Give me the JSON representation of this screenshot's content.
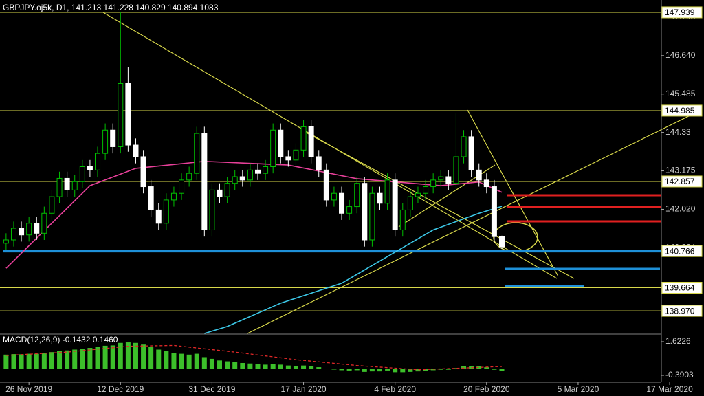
{
  "chart_data": [
    {
      "type": "candlestick",
      "title": "GBPJPY.oj5k, D1, 141.213 141.228 140.829 140.894 1083",
      "xlim": [
        -0.8,
        91.5
      ],
      "xticks": [
        {
          "value": 3,
          "label": "26 Nov 2019"
        },
        {
          "value": 15,
          "label": "12 Dec 2019"
        },
        {
          "value": 27,
          "label": "31 Dec 2019"
        },
        {
          "value": 39,
          "label": "17 Jan 2020"
        },
        {
          "value": 51,
          "label": "4 Feb 2020"
        },
        {
          "value": 63,
          "label": "20 Feb 2020"
        },
        {
          "value": 75,
          "label": "5 Mar 2020"
        },
        {
          "value": 87,
          "label": "17 Mar 2020"
        }
      ],
      "ylim": [
        138.29,
        148.31
      ],
      "yticks": [
        147.795,
        {
          "value": 146.64,
          "label": "146.640"
        },
        145.485,
        144.33,
        143.175,
        {
          "value": 142.02,
          "label": "142.020"
        },
        140.864
      ],
      "up_color": "#00c000",
      "down_color": "#ffffff",
      "open": [
        141.0,
        141.1,
        141.45,
        141.25,
        141.6,
        141.3,
        141.9,
        142.4,
        142.95,
        142.6,
        142.85,
        143.3,
        143.2,
        143.7,
        144.4,
        143.9,
        145.8,
        143.95,
        143.6,
        142.7,
        142.0,
        141.6,
        142.3,
        142.5,
        142.9,
        143.1,
        144.3,
        141.4,
        142.6,
        142.4,
        142.8,
        143.0,
        142.9,
        143.2,
        143.1,
        143.3,
        144.4,
        143.6,
        143.5,
        143.8,
        144.5,
        143.6,
        143.2,
        142.3,
        142.5,
        141.9,
        142.1,
        142.8,
        141.1,
        142.5,
        142.2,
        142.9,
        141.4,
        142.0,
        142.4,
        142.5,
        142.7,
        142.9,
        143.0,
        142.8,
        143.6,
        144.2,
        143.2,
        142.9,
        142.7,
        141.213
      ],
      "high": [
        141.3,
        141.65,
        141.65,
        141.8,
        141.8,
        142.1,
        142.6,
        143.15,
        143.15,
        143.05,
        143.5,
        143.5,
        143.9,
        144.6,
        144.6,
        147.94,
        146.3,
        144.15,
        143.8,
        142.9,
        142.2,
        142.5,
        142.7,
        143.1,
        143.3,
        144.5,
        144.5,
        142.8,
        142.8,
        143.0,
        143.2,
        143.2,
        143.4,
        143.4,
        143.5,
        144.6,
        144.6,
        143.8,
        144.0,
        144.7,
        144.7,
        143.8,
        143.4,
        142.7,
        142.7,
        142.3,
        143.0,
        143.0,
        142.7,
        142.7,
        143.1,
        143.1,
        142.2,
        142.6,
        142.7,
        142.9,
        143.1,
        143.2,
        143.2,
        144.9,
        144.4,
        144.4,
        143.4,
        143.1,
        142.9,
        141.228
      ],
      "low": [
        140.8,
        140.9,
        141.05,
        141.05,
        141.1,
        141.1,
        141.7,
        142.2,
        142.4,
        142.4,
        142.65,
        143.0,
        143.0,
        143.5,
        143.7,
        143.7,
        143.75,
        143.4,
        142.5,
        141.8,
        141.4,
        141.4,
        142.1,
        142.3,
        142.7,
        142.9,
        141.2,
        141.2,
        142.2,
        142.2,
        142.6,
        142.7,
        142.7,
        142.9,
        142.9,
        143.1,
        143.4,
        143.3,
        143.3,
        143.6,
        143.4,
        143.0,
        142.1,
        142.1,
        141.7,
        141.7,
        141.9,
        140.9,
        140.9,
        142.0,
        142.0,
        141.2,
        141.2,
        141.8,
        142.2,
        142.3,
        142.5,
        142.7,
        142.6,
        142.6,
        143.4,
        143.0,
        142.7,
        142.5,
        141.0,
        140.829
      ],
      "close": [
        141.1,
        141.45,
        141.25,
        141.6,
        141.3,
        141.9,
        142.4,
        142.95,
        142.6,
        142.85,
        143.3,
        143.2,
        143.7,
        144.4,
        143.9,
        145.8,
        143.95,
        143.6,
        142.7,
        142.0,
        141.6,
        142.3,
        142.5,
        142.9,
        143.1,
        144.3,
        141.4,
        142.6,
        142.4,
        142.8,
        143.0,
        142.9,
        143.2,
        143.1,
        143.3,
        144.4,
        143.6,
        143.5,
        143.8,
        144.5,
        143.6,
        143.2,
        142.3,
        142.5,
        141.9,
        142.1,
        142.8,
        141.1,
        142.5,
        142.2,
        142.9,
        141.4,
        142.0,
        142.4,
        142.5,
        142.7,
        142.9,
        143.0,
        142.8,
        143.6,
        144.2,
        143.2,
        142.9,
        142.7,
        141.2,
        140.894
      ],
      "overlays": [
        {
          "color": "#e8409a",
          "x": [
            0,
            11,
            17,
            26,
            37,
            46,
            57,
            62,
            65
          ],
          "values": [
            140.25,
            142.73,
            143.25,
            143.46,
            143.35,
            142.94,
            142.73,
            142.84,
            142.53
          ]
        },
        {
          "color": "#3cc8e8",
          "x": [
            26,
            29,
            36,
            44,
            50,
            56,
            62,
            65
          ],
          "values": [
            138.29,
            138.5,
            139.2,
            139.8,
            140.6,
            141.4,
            141.9,
            142.11
          ]
        }
      ],
      "levels": [
        {
          "value": 147.939,
          "color": "#d8d84a"
        },
        {
          "value": 144.985,
          "color": "#d8d84a"
        },
        {
          "value": 142.857,
          "color": "#d8d84a"
        },
        {
          "value": 140.766,
          "color": "#1e90d8"
        },
        {
          "value": 139.664,
          "color": "#d8d84a"
        },
        {
          "value": 138.97,
          "label": "138.970",
          "color": "#d8d84a"
        }
      ]
    },
    {
      "type": "bar",
      "title": "MACD(12,26,9) -0.1432 0.1460",
      "xlim": [
        -0.8,
        91.5
      ],
      "ylim": [
        -0.801,
        1.9924
      ],
      "yticks": [
        1.6226,
        -0.3903
      ],
      "color": "#3cbf2a",
      "values": [
        0.85,
        0.88,
        0.87,
        0.9,
        0.9,
        0.95,
        1.0,
        1.08,
        1.1,
        1.15,
        1.2,
        1.25,
        1.3,
        1.38,
        1.4,
        1.55,
        1.58,
        1.55,
        1.45,
        1.3,
        1.15,
        1.05,
        0.95,
        0.9,
        0.85,
        0.9,
        0.7,
        0.6,
        0.5,
        0.45,
        0.4,
        0.35,
        0.32,
        0.28,
        0.25,
        0.3,
        0.25,
        0.2,
        0.18,
        0.2,
        0.15,
        0.1,
        0.02,
        -0.02,
        -0.08,
        -0.1,
        -0.08,
        -0.18,
        -0.15,
        -0.15,
        -0.1,
        -0.2,
        -0.2,
        -0.18,
        -0.15,
        -0.12,
        -0.08,
        -0.05,
        -0.05,
        0.05,
        0.15,
        0.18,
        0.15,
        0.1,
        -0.05,
        -0.1432
      ],
      "signal": {
        "color": "#e02828",
        "x": [
          0,
          8,
          16,
          22,
          30,
          38,
          46,
          54,
          60,
          65
        ],
        "values": [
          0.8,
          1.0,
          1.35,
          1.4,
          1.0,
          0.55,
          0.2,
          -0.05,
          0.05,
          0.146
        ]
      }
    }
  ]
}
